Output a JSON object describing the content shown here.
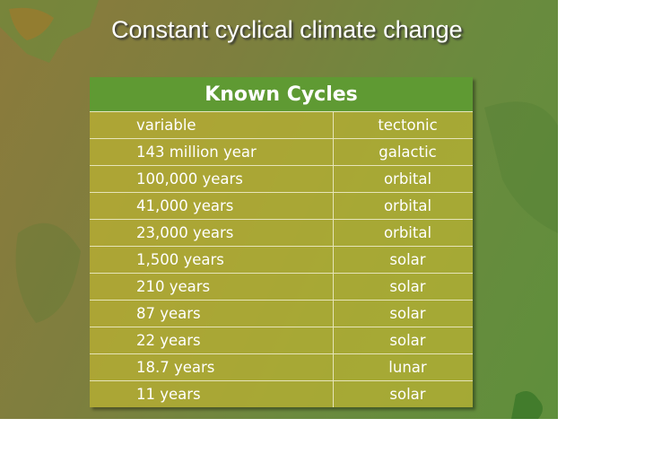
{
  "header": {
    "title": "Constant cyclical climate change"
  },
  "table": {
    "title": "Known Cycles",
    "rows": [
      [
        "variable",
        "tectonic"
      ],
      [
        "143 million year",
        "galactic"
      ],
      [
        "100,000 years",
        "orbital"
      ],
      [
        "41,000 years",
        "orbital"
      ],
      [
        "23,000 years",
        "orbital"
      ],
      [
        "1,500 years",
        "solar"
      ],
      [
        "210 years",
        "solar"
      ],
      [
        "87 years",
        "solar"
      ],
      [
        "22 years",
        "solar"
      ],
      [
        "18.7 years",
        "lunar"
      ],
      [
        "11 years",
        "solar"
      ]
    ]
  }
}
